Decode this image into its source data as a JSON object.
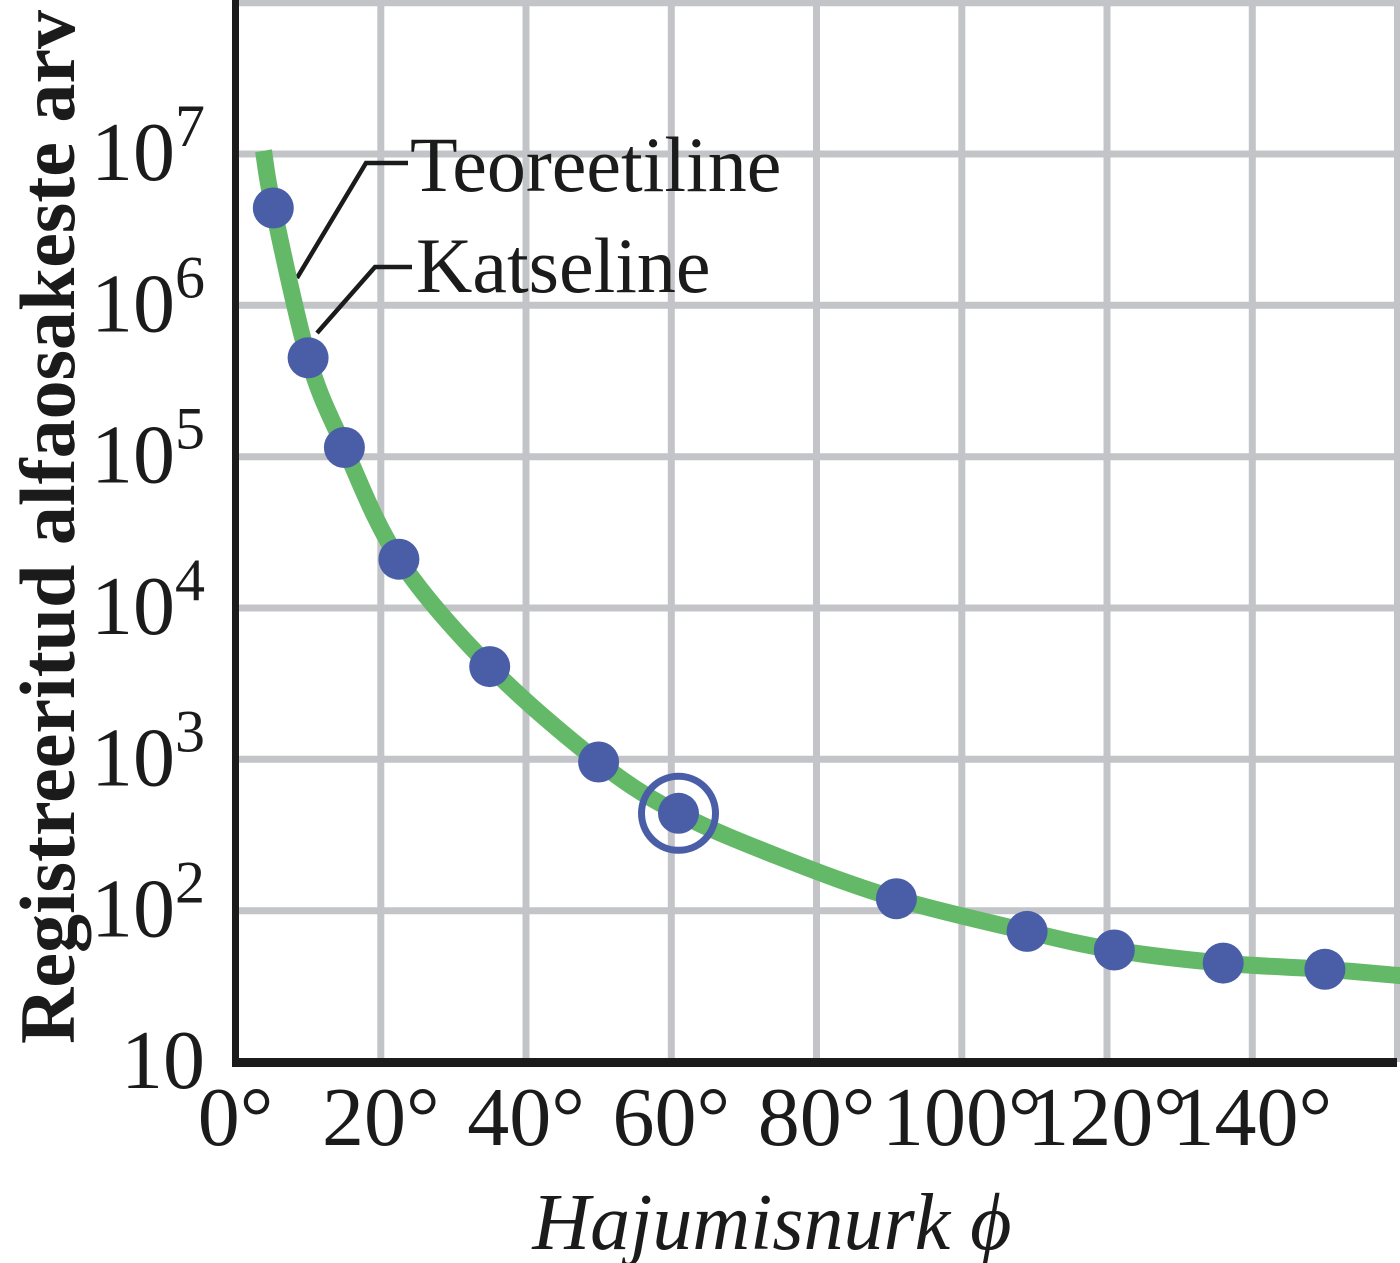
{
  "page": {
    "background": "#ffffff"
  },
  "chart_data": {
    "type": "scatter",
    "title": "",
    "x_axis": {
      "label": "Hajumisnurk ϕ",
      "unit": "degrees",
      "tick_labels": [
        "0°",
        "20°",
        "40°",
        "60°",
        "80°",
        "100°",
        "120°",
        "140°"
      ],
      "tick_values_deg": [
        0,
        20,
        40,
        60,
        80,
        100,
        120,
        140
      ],
      "grid_step_deg": 20,
      "range_deg": [
        0,
        160.4
      ]
    },
    "y_axis": {
      "label": "Registreeritud alfaosakeste arv",
      "scale": "log10",
      "tick_labels": [
        "10",
        "10^2",
        "10^3",
        "10^4",
        "10^5",
        "10^6",
        "10^7"
      ],
      "tick_values": [
        10,
        100,
        1000,
        10000,
        100000,
        1000000,
        10000000
      ],
      "range": [
        10,
        100000000
      ]
    },
    "grid": {
      "show": true,
      "color": "#c2c4c7"
    },
    "series": [
      {
        "name": "Teoreetiline",
        "type": "line",
        "color": "#63b967",
        "points_deg_counts": [
          [
            3.85,
            10500000
          ],
          [
            5.2,
            4400000
          ],
          [
            10,
            450000
          ],
          [
            15,
            115000
          ],
          [
            22.5,
            21000
          ],
          [
            35,
            4100
          ],
          [
            50,
            960
          ],
          [
            61,
            440
          ],
          [
            75,
            225
          ],
          [
            91,
            120
          ],
          [
            109,
            73
          ],
          [
            121,
            55
          ],
          [
            136,
            45
          ],
          [
            150,
            41
          ],
          [
            161,
            37
          ]
        ]
      },
      {
        "name": "Katseline",
        "type": "scatter",
        "color": "#4a5ea8",
        "points_deg_counts": [
          [
            5.2,
            4400000
          ],
          [
            10,
            450000
          ],
          [
            15,
            115000
          ],
          [
            22.5,
            21000
          ],
          [
            35,
            4100
          ],
          [
            50,
            960
          ],
          [
            61,
            440
          ],
          [
            91,
            120
          ],
          [
            109,
            73
          ],
          [
            121,
            55
          ],
          [
            136,
            45
          ],
          [
            150,
            41
          ]
        ],
        "highlighted_point_deg_counts": [
          61,
          440
        ]
      }
    ],
    "colors": {
      "axis": "#1b1b1b",
      "grid": "#c2c4c7",
      "curve": "#63b967",
      "dots": "#4a5ea8",
      "text": "#1b1b1b"
    }
  }
}
